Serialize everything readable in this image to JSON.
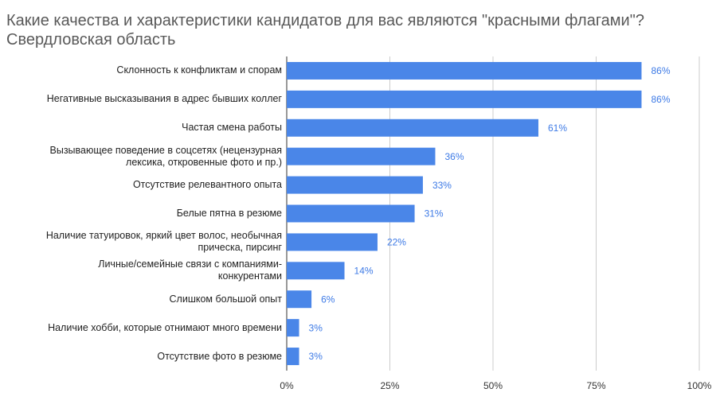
{
  "chart_data": {
    "type": "bar",
    "orientation": "horizontal",
    "title": "Какие качества и характеристики кандидатов для вас являются \"красными флагами\"?",
    "subtitle": "Свердловская область",
    "categories": [
      "Склонность к конфликтам и спорам",
      "Негативные высказывания в адрес бывших коллег",
      "Частая смена работы",
      "Вызывающее поведение в соцсетях (нецензурная лексика, откровенные фото и пр.)",
      "Отсутствие релевантного опыта",
      "Белые пятна в резюме",
      "Наличие татуировок, яркий цвет волос, необычная прическа, пирсинг",
      "Личные/семейные связи с компаниями-конкурентами",
      "Слишком большой опыт",
      "Наличие хобби, которые отнимают много времени",
      "Отсутствие фото в резюме"
    ],
    "values": [
      86,
      86,
      61,
      36,
      33,
      31,
      22,
      14,
      6,
      3,
      3
    ],
    "value_labels": [
      "86%",
      "86%",
      "61%",
      "36%",
      "33%",
      "31%",
      "22%",
      "14%",
      "6%",
      "3%",
      "3%"
    ],
    "color": "#4a86e8",
    "xlim": [
      0,
      100
    ],
    "xticks": [
      {
        "value": 0,
        "label": "0%"
      },
      {
        "value": 25,
        "label": "25%"
      },
      {
        "value": 50,
        "label": "50%"
      },
      {
        "value": 75,
        "label": "75%"
      },
      {
        "value": 100,
        "label": "100%"
      }
    ],
    "grid": true
  }
}
